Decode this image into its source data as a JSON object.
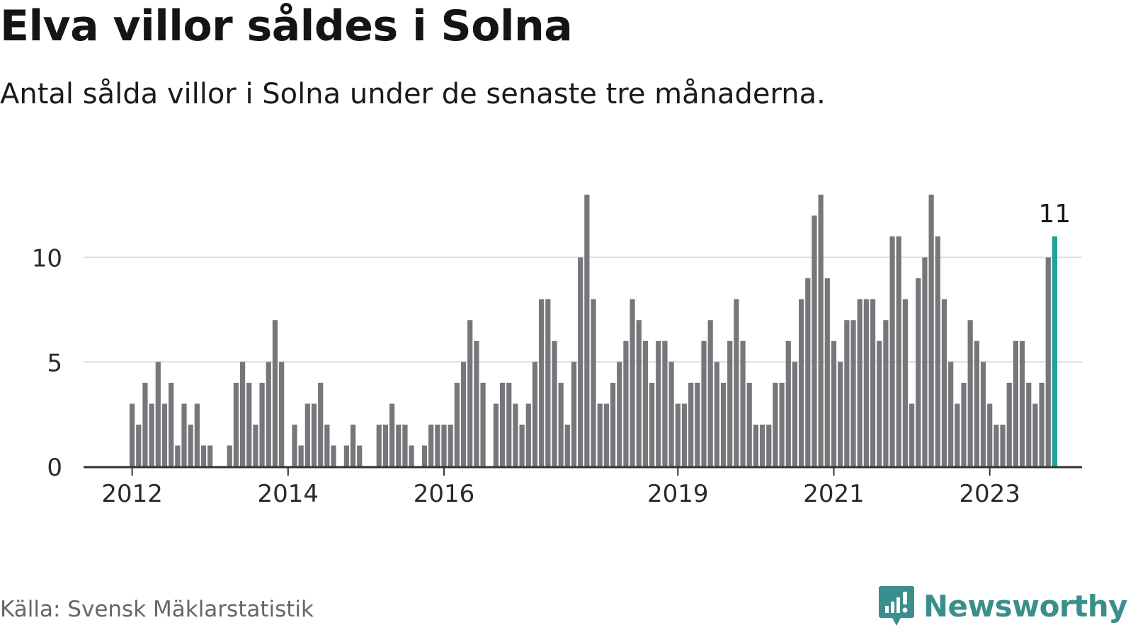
{
  "header": {
    "title": "Elva villor såldes i Solna",
    "subtitle": "Antal sålda villor i Solna under de senaste tre månaderna."
  },
  "footer": {
    "source": "Källa: Svensk Mäklarstatistik",
    "brand": "Newsworthy",
    "brand_icon": "newsworthy-logo-icon"
  },
  "colors": {
    "bar": "#76767b",
    "highlight": "#1fa39a",
    "grid": "#dcdcdc",
    "axis": "#333333",
    "brand": "#3a8f8c"
  },
  "chart_data": {
    "type": "bar",
    "title": "Elva villor såldes i Solna",
    "subtitle": "Antal sålda villor i Solna under de senaste tre månaderna.",
    "xlabel": "",
    "ylabel": "",
    "ylim": [
      0,
      13
    ],
    "yticks": [
      0,
      5,
      10
    ],
    "grid": true,
    "start": "2012-01",
    "frequency": "monthly",
    "x_tick_labels": [
      "2012",
      "2014",
      "2016",
      "2019",
      "2021",
      "2023"
    ],
    "x_tick_index": [
      0,
      24,
      48,
      84,
      108,
      132
    ],
    "values": [
      3,
      2,
      4,
      3,
      5,
      3,
      4,
      1,
      3,
      2,
      3,
      1,
      1,
      null,
      null,
      1,
      4,
      5,
      4,
      2,
      4,
      5,
      7,
      5,
      null,
      2,
      1,
      3,
      3,
      4,
      2,
      1,
      null,
      1,
      2,
      1,
      null,
      null,
      2,
      2,
      3,
      2,
      2,
      1,
      null,
      1,
      2,
      2,
      2,
      2,
      4,
      5,
      7,
      6,
      4,
      null,
      3,
      4,
      4,
      3,
      2,
      3,
      5,
      8,
      8,
      6,
      4,
      2,
      5,
      10,
      13,
      8,
      3,
      3,
      4,
      5,
      6,
      8,
      7,
      6,
      4,
      6,
      6,
      5,
      3,
      3,
      4,
      4,
      6,
      7,
      5,
      4,
      6,
      8,
      6,
      4,
      2,
      2,
      2,
      4,
      4,
      6,
      5,
      8,
      9,
      12,
      13,
      9,
      6,
      5,
      7,
      7,
      8,
      8,
      8,
      6,
      7,
      11,
      11,
      8,
      3,
      9,
      10,
      13,
      11,
      8,
      5,
      3,
      4,
      7,
      6,
      5,
      3,
      2,
      2,
      4,
      6,
      6,
      4,
      3,
      4,
      10,
      11
    ],
    "highlight_label": "11"
  }
}
